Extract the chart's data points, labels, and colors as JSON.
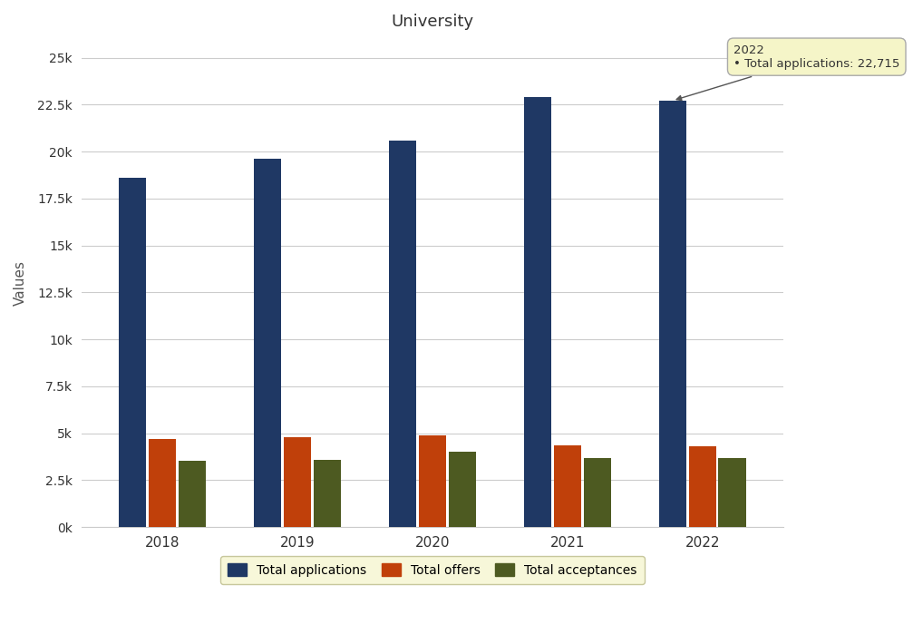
{
  "title": "University",
  "ylabel": "Values",
  "years": [
    "2018",
    "2019",
    "2020",
    "2021",
    "2022"
  ],
  "total_applications": [
    18600,
    19600,
    20600,
    22900,
    22715
  ],
  "total_offers": [
    4700,
    4800,
    4900,
    4350,
    4300
  ],
  "total_acceptances": [
    3550,
    3600,
    4000,
    3700,
    3680
  ],
  "bar_colors": {
    "total_applications": "#1F3864",
    "total_offers": "#C0400A",
    "total_acceptances": "#4D5A21"
  },
  "legend_labels": [
    "Total applications",
    "Total offers",
    "Total acceptances"
  ],
  "ylim": [
    0,
    26000
  ],
  "yticks": [
    0,
    2500,
    5000,
    7500,
    10000,
    12500,
    15000,
    17500,
    20000,
    22500,
    25000
  ],
  "ytick_labels": [
    "0k",
    "2.5k",
    "5k",
    "7.5k",
    "10k",
    "12.5k",
    "15k",
    "17.5k",
    "20k",
    "22.5k",
    "25k"
  ],
  "tooltip": {
    "year": "2022",
    "label": "Total applications",
    "value": "22,715",
    "bar_index": 4
  },
  "bg_color": "#ffffff",
  "grid_color": "#cccccc",
  "title_fontsize": 13,
  "axis_fontsize": 11,
  "tick_fontsize": 10
}
